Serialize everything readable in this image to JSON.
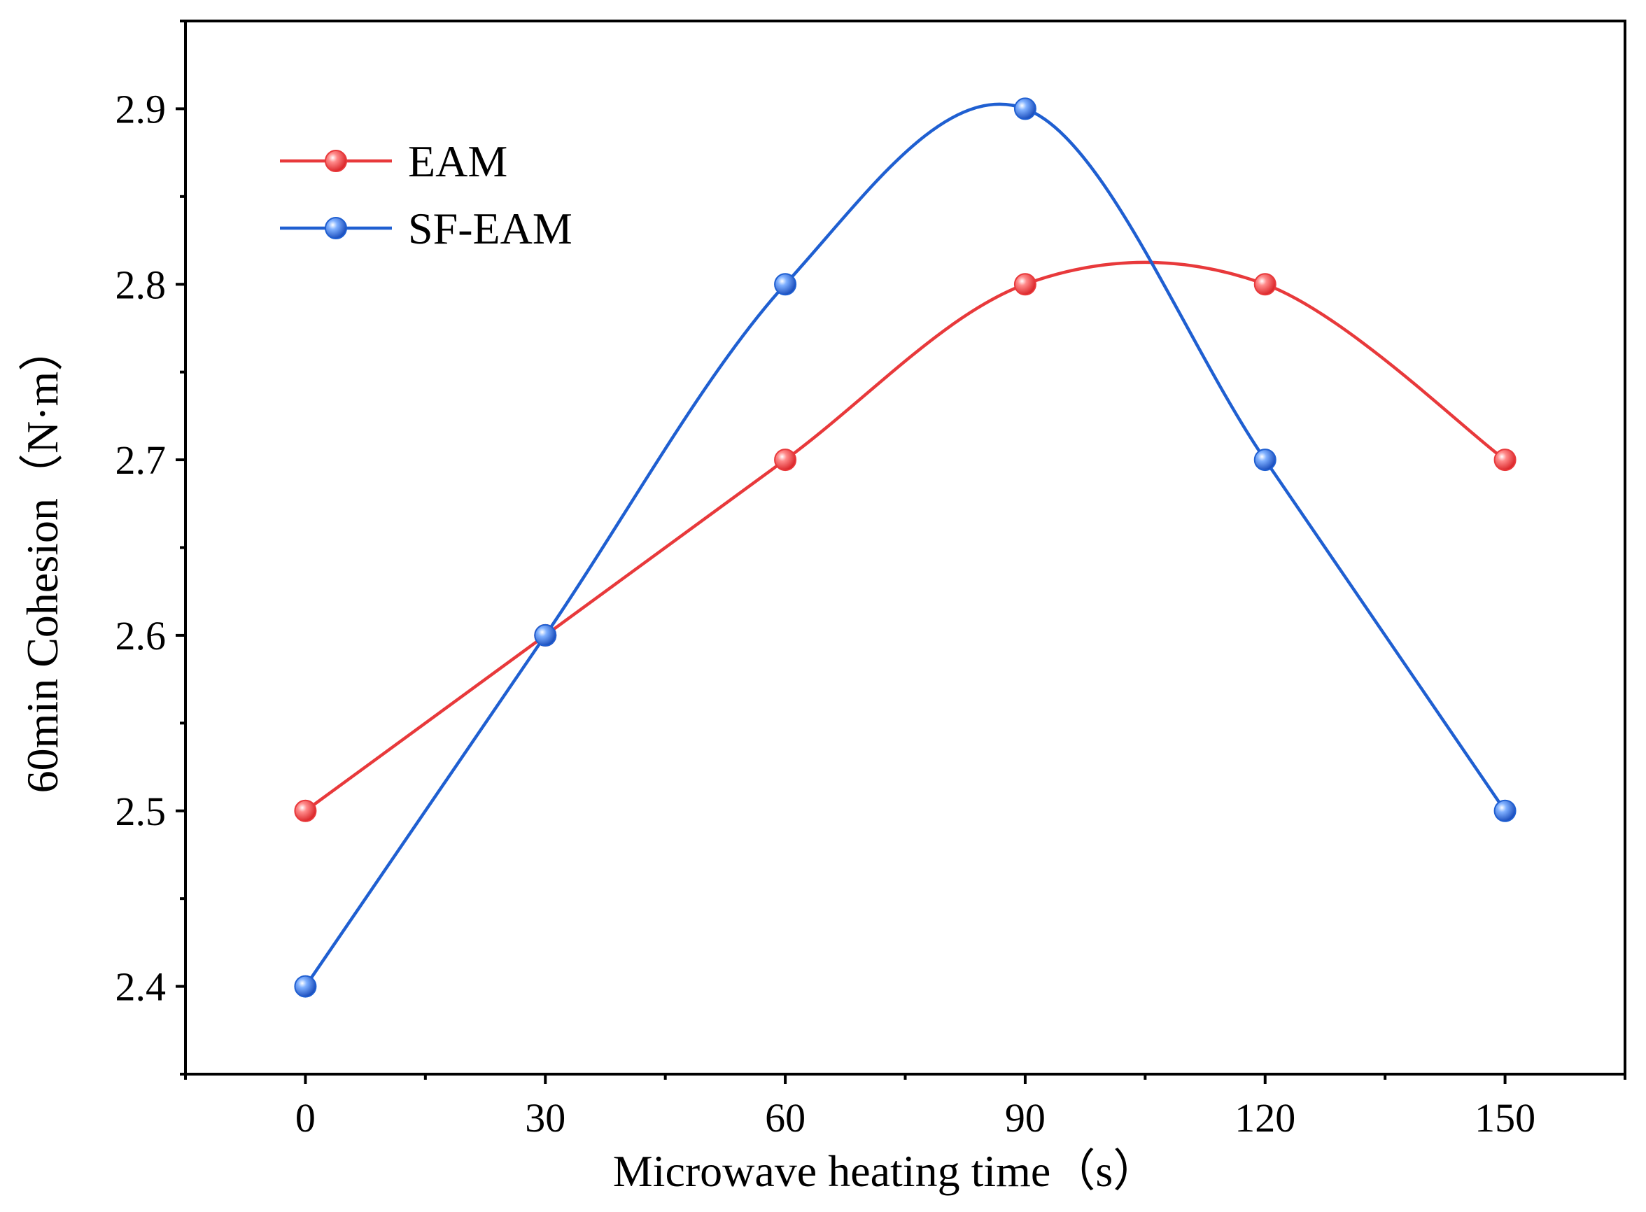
{
  "chart_data": {
    "type": "line",
    "title": "",
    "xlabel": "Microwave heating time（s）",
    "ylabel": "60min Cohesion（N·m）",
    "x": [
      0,
      30,
      60,
      90,
      120,
      150
    ],
    "x_ticks": [
      "0",
      "30",
      "60",
      "90",
      "120",
      "150"
    ],
    "y_ticks": [
      "2.4",
      "2.5",
      "2.6",
      "2.7",
      "2.8",
      "2.9"
    ],
    "xlim": [
      -15,
      165
    ],
    "ylim": [
      2.35,
      2.95
    ],
    "grid": false,
    "legend_position": "top-left",
    "series": [
      {
        "name": "EAM",
        "color": "#e8393b",
        "values": [
          2.5,
          2.6,
          2.7,
          2.8,
          2.8,
          2.7
        ]
      },
      {
        "name": "SF-EAM",
        "color": "#1f5fd1",
        "values": [
          2.4,
          2.6,
          2.8,
          2.9,
          2.7,
          2.5
        ]
      }
    ]
  }
}
